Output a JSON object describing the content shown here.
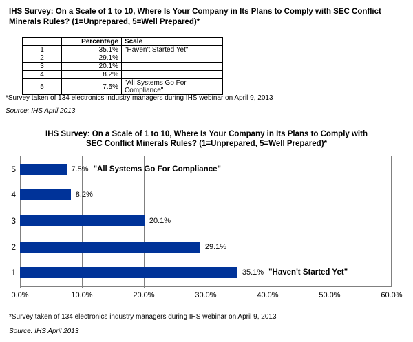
{
  "document": {
    "title_line1": "IHS Survey: On a Scale of 1 to 10, Where Is Your Company in Its Plans to Comply with SEC Conflict",
    "title_line2": "Minerals Rules? (1=Unprepared, 5=Well Prepared)*",
    "footnote": "*Survey taken of 134 electronics industry managers during IHS webinar on April 9, 2013",
    "source": "Source: IHS April 2013"
  },
  "table": {
    "columns": [
      "",
      "Percentage",
      "Scale"
    ],
    "rows": [
      [
        "1",
        "35.1%",
        "\"Haven't Started Yet\""
      ],
      [
        "2",
        "29.1%",
        ""
      ],
      [
        "3",
        "20.1%",
        ""
      ],
      [
        "4",
        "8.2%",
        ""
      ],
      [
        "5",
        "7.5%",
        "\"All Systems Go For Compliance\""
      ]
    ]
  },
  "chart_data": {
    "type": "bar",
    "orientation": "horizontal",
    "title_line1": "IHS Survey: On a Scale of 1 to 10, Where Is Your Company in Its Plans to Comply with",
    "title_line2": "SEC Conflict Minerals Rules? (1=Unprepared, 5=Well Prepared)*",
    "categories": [
      "5",
      "4",
      "3",
      "2",
      "1"
    ],
    "values": [
      7.5,
      8.2,
      20.1,
      29.1,
      35.1
    ],
    "value_labels": [
      "7.5%",
      "8.2%",
      "20.1%",
      "29.1%",
      "35.1%"
    ],
    "annotations": [
      "\"All Systems Go For Compliance\"",
      "",
      "",
      "",
      "\"Haven't Started Yet\""
    ],
    "xlim": [
      0,
      60
    ],
    "x_tick_labels": [
      "0.0%",
      "10.0%",
      "20.0%",
      "30.0%",
      "40.0%",
      "50.0%",
      "60.0%"
    ],
    "grid": true,
    "legend": false,
    "bar_color": "#003399",
    "gridline_color": "#808080",
    "axis_color": "#808080"
  },
  "chart_footer": {
    "footnote": "*Survey taken of 134 electronics industry managers during IHS webinar on April 9, 2013",
    "source": "Source: IHS April 2013"
  }
}
